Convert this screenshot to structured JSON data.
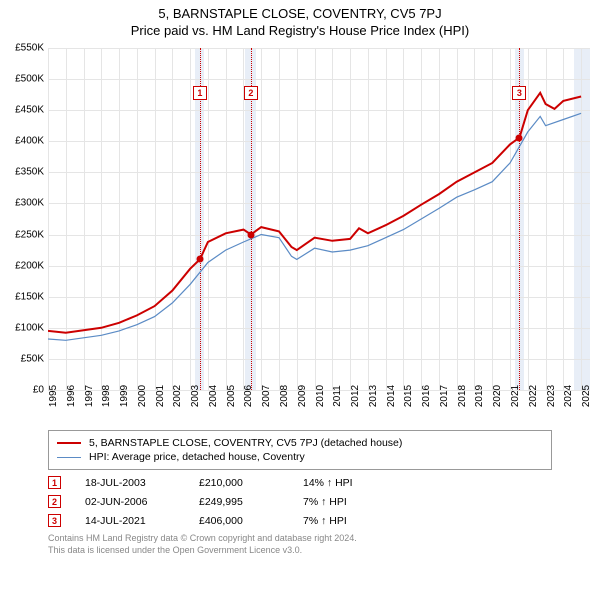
{
  "title": {
    "main": "5, BARNSTAPLE CLOSE, COVENTRY, CV5 7PJ",
    "sub": "Price paid vs. HM Land Registry's House Price Index (HPI)"
  },
  "chart": {
    "type": "line",
    "background_color": "#ffffff",
    "grid_color": "#e5e5e5",
    "band_color": "#e8eef7",
    "x": {
      "min": 1995,
      "max": 2025.5,
      "ticks": [
        1995,
        1996,
        1997,
        1998,
        1999,
        2000,
        2001,
        2002,
        2003,
        2004,
        2005,
        2006,
        2007,
        2008,
        2009,
        2010,
        2011,
        2012,
        2013,
        2014,
        2015,
        2016,
        2017,
        2018,
        2019,
        2020,
        2021,
        2022,
        2023,
        2024,
        2025
      ],
      "labels": [
        "1995",
        "1996",
        "1997",
        "1998",
        "1999",
        "2000",
        "2001",
        "2002",
        "2003",
        "2004",
        "2005",
        "2006",
        "2007",
        "2008",
        "2009",
        "2010",
        "2011",
        "2012",
        "2013",
        "2014",
        "2015",
        "2016",
        "2017",
        "2018",
        "2019",
        "2020",
        "2021",
        "2022",
        "2023",
        "2024",
        "2025"
      ]
    },
    "y": {
      "min": 0,
      "max": 550000,
      "tick_step": 50000,
      "labels": [
        "£0",
        "£50K",
        "£100K",
        "£150K",
        "£200K",
        "£250K",
        "£300K",
        "£350K",
        "£400K",
        "£450K",
        "£500K",
        "£550K"
      ]
    },
    "bands": [
      {
        "from": 2003.3,
        "to": 2003.8
      },
      {
        "from": 2006.1,
        "to": 2006.7
      },
      {
        "from": 2021.3,
        "to": 2021.8
      },
      {
        "from": 2024.6,
        "to": 2025.5
      }
    ],
    "series": [
      {
        "name": "5, BARNSTAPLE CLOSE, COVENTRY, CV5 7PJ (detached house)",
        "color": "#cc0000",
        "line_width": 2,
        "data": [
          [
            1995,
            95000
          ],
          [
            1996,
            92000
          ],
          [
            1997,
            96000
          ],
          [
            1998,
            100000
          ],
          [
            1999,
            108000
          ],
          [
            2000,
            120000
          ],
          [
            2001,
            135000
          ],
          [
            2002,
            160000
          ],
          [
            2003,
            195000
          ],
          [
            2003.55,
            210000
          ],
          [
            2004,
            238000
          ],
          [
            2005,
            252000
          ],
          [
            2006,
            258000
          ],
          [
            2006.42,
            249995
          ],
          [
            2007,
            262000
          ],
          [
            2008,
            255000
          ],
          [
            2008.7,
            230000
          ],
          [
            2009,
            225000
          ],
          [
            2010,
            245000
          ],
          [
            2011,
            240000
          ],
          [
            2012,
            243000
          ],
          [
            2012.5,
            260000
          ],
          [
            2013,
            252000
          ],
          [
            2014,
            265000
          ],
          [
            2015,
            280000
          ],
          [
            2016,
            298000
          ],
          [
            2017,
            315000
          ],
          [
            2018,
            335000
          ],
          [
            2019,
            350000
          ],
          [
            2020,
            365000
          ],
          [
            2021,
            395000
          ],
          [
            2021.53,
            406000
          ],
          [
            2022,
            450000
          ],
          [
            2022.7,
            478000
          ],
          [
            2023,
            460000
          ],
          [
            2023.5,
            452000
          ],
          [
            2024,
            465000
          ],
          [
            2025,
            472000
          ]
        ]
      },
      {
        "name": "HPI: Average price, detached house, Coventry",
        "color": "#5b8bc5",
        "line_width": 1.2,
        "data": [
          [
            1995,
            82000
          ],
          [
            1996,
            80000
          ],
          [
            1997,
            84000
          ],
          [
            1998,
            88000
          ],
          [
            1999,
            95000
          ],
          [
            2000,
            105000
          ],
          [
            2001,
            118000
          ],
          [
            2002,
            140000
          ],
          [
            2003,
            170000
          ],
          [
            2004,
            205000
          ],
          [
            2005,
            225000
          ],
          [
            2006,
            238000
          ],
          [
            2007,
            250000
          ],
          [
            2008,
            245000
          ],
          [
            2008.7,
            215000
          ],
          [
            2009,
            210000
          ],
          [
            2010,
            228000
          ],
          [
            2011,
            222000
          ],
          [
            2012,
            225000
          ],
          [
            2013,
            232000
          ],
          [
            2014,
            245000
          ],
          [
            2015,
            258000
          ],
          [
            2016,
            275000
          ],
          [
            2017,
            292000
          ],
          [
            2018,
            310000
          ],
          [
            2019,
            322000
          ],
          [
            2020,
            335000
          ],
          [
            2021,
            365000
          ],
          [
            2022,
            415000
          ],
          [
            2022.7,
            440000
          ],
          [
            2023,
            425000
          ],
          [
            2024,
            435000
          ],
          [
            2025,
            445000
          ]
        ]
      }
    ],
    "markers": [
      {
        "n": "1",
        "x": 2003.55,
        "y": 210000
      },
      {
        "n": "2",
        "x": 2006.42,
        "y": 249995
      },
      {
        "n": "3",
        "x": 2021.53,
        "y": 406000
      }
    ]
  },
  "legend": {
    "items": [
      {
        "color": "#cc0000",
        "width": 2,
        "label": "5, BARNSTAPLE CLOSE, COVENTRY, CV5 7PJ (detached house)"
      },
      {
        "color": "#5b8bc5",
        "width": 1.2,
        "label": "HPI: Average price, detached house, Coventry"
      }
    ]
  },
  "sales": [
    {
      "n": "1",
      "date": "18-JUL-2003",
      "price": "£210,000",
      "pct": "14% ↑ HPI"
    },
    {
      "n": "2",
      "date": "02-JUN-2006",
      "price": "£249,995",
      "pct": "7% ↑ HPI"
    },
    {
      "n": "3",
      "date": "14-JUL-2021",
      "price": "£406,000",
      "pct": "7% ↑ HPI"
    }
  ],
  "footer": {
    "line1": "Contains HM Land Registry data © Crown copyright and database right 2024.",
    "line2": "This data is licensed under the Open Government Licence v3.0."
  }
}
